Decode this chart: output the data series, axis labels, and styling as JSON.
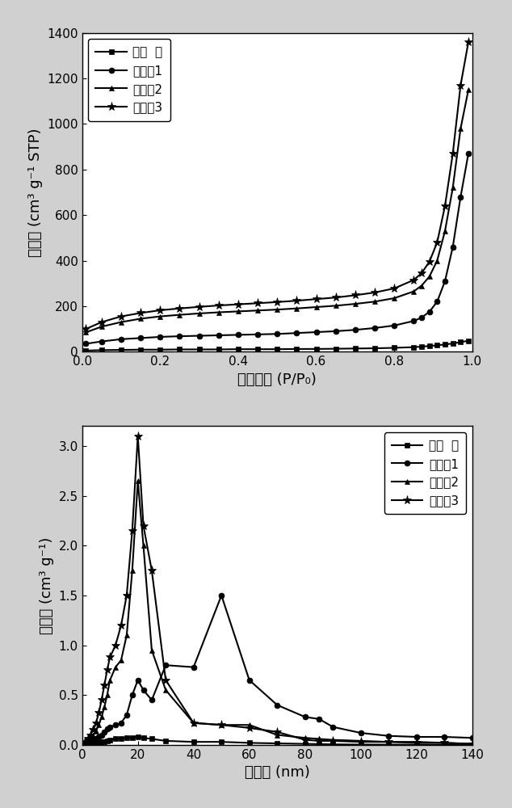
{
  "plot1": {
    "xlabel": "相对压力 (P/P₀)",
    "ylabel": "孔体积 (cm³ g⁻¹ STP)",
    "xlim": [
      0.0,
      1.0
    ],
    "ylim": [
      0,
      1400
    ],
    "xticks": [
      0.0,
      0.2,
      0.4,
      0.6,
      0.8,
      1.0
    ],
    "yticks": [
      0,
      200,
      400,
      600,
      800,
      1000,
      1200,
      1400
    ],
    "legend_loc": "upper left",
    "series": [
      {
        "label": "对比  例",
        "marker": "s",
        "x": [
          0.01,
          0.05,
          0.1,
          0.15,
          0.2,
          0.25,
          0.3,
          0.35,
          0.4,
          0.45,
          0.5,
          0.55,
          0.6,
          0.65,
          0.7,
          0.75,
          0.8,
          0.85,
          0.87,
          0.89,
          0.91,
          0.93,
          0.95,
          0.97,
          0.99
        ],
        "y": [
          5,
          7,
          8,
          9,
          9,
          10,
          10,
          10,
          11,
          11,
          11,
          12,
          12,
          13,
          14,
          15,
          17,
          20,
          22,
          25,
          28,
          32,
          36,
          42,
          48
        ]
      },
      {
        "label": "实施例1",
        "marker": "o",
        "x": [
          0.01,
          0.05,
          0.1,
          0.15,
          0.2,
          0.25,
          0.3,
          0.35,
          0.4,
          0.45,
          0.5,
          0.55,
          0.6,
          0.65,
          0.7,
          0.75,
          0.8,
          0.85,
          0.87,
          0.89,
          0.91,
          0.93,
          0.95,
          0.97,
          0.99
        ],
        "y": [
          35,
          45,
          55,
          60,
          65,
          68,
          70,
          72,
          74,
          76,
          78,
          82,
          86,
          90,
          96,
          104,
          115,
          135,
          150,
          175,
          220,
          310,
          460,
          680,
          870
        ]
      },
      {
        "label": "实施例2",
        "marker": "^",
        "x": [
          0.01,
          0.05,
          0.1,
          0.15,
          0.2,
          0.25,
          0.3,
          0.35,
          0.4,
          0.45,
          0.5,
          0.55,
          0.6,
          0.65,
          0.7,
          0.75,
          0.8,
          0.85,
          0.87,
          0.89,
          0.91,
          0.93,
          0.95,
          0.97,
          0.99
        ],
        "y": [
          85,
          110,
          130,
          145,
          155,
          162,
          168,
          173,
          177,
          181,
          185,
          190,
          196,
          202,
          210,
          220,
          235,
          265,
          290,
          330,
          400,
          530,
          720,
          980,
          1150
        ]
      },
      {
        "label": "实施例3",
        "marker": "*",
        "x": [
          0.01,
          0.05,
          0.1,
          0.15,
          0.2,
          0.25,
          0.3,
          0.35,
          0.4,
          0.45,
          0.5,
          0.55,
          0.6,
          0.65,
          0.7,
          0.75,
          0.8,
          0.85,
          0.87,
          0.89,
          0.91,
          0.93,
          0.95,
          0.97,
          0.99
        ],
        "y": [
          100,
          130,
          155,
          170,
          182,
          190,
          197,
          203,
          208,
          213,
          218,
          224,
          231,
          238,
          248,
          260,
          278,
          315,
          345,
          395,
          480,
          640,
          870,
          1170,
          1360
        ]
      }
    ]
  },
  "plot2": {
    "xlabel": "孔尺寸 (nm)",
    "ylabel": "孔体积 (cm³ g⁻¹)",
    "xlim": [
      0,
      140
    ],
    "ylim": [
      0,
      3.2
    ],
    "xticks": [
      0,
      20,
      40,
      60,
      80,
      100,
      120,
      140
    ],
    "yticks": [
      0.0,
      0.5,
      1.0,
      1.5,
      2.0,
      2.5,
      3.0
    ],
    "legend_loc": "upper right",
    "series": [
      {
        "label": "对比  例",
        "marker": "s",
        "x": [
          1,
          2,
          3,
          4,
          5,
          6,
          7,
          8,
          9,
          10,
          12,
          14,
          16,
          18,
          20,
          22,
          25,
          30,
          40,
          50,
          60,
          70,
          80,
          85,
          90,
          100,
          110,
          120,
          130,
          140
        ],
        "y": [
          0.005,
          0.008,
          0.01,
          0.015,
          0.02,
          0.025,
          0.03,
          0.035,
          0.04,
          0.05,
          0.06,
          0.065,
          0.07,
          0.075,
          0.08,
          0.07,
          0.06,
          0.04,
          0.03,
          0.03,
          0.02,
          0.015,
          0.01,
          0.008,
          0.005,
          0.003,
          0.002,
          0.002,
          0.001,
          0.0
        ]
      },
      {
        "label": "实施例1",
        "marker": "o",
        "x": [
          1,
          2,
          3,
          4,
          5,
          6,
          7,
          8,
          9,
          10,
          12,
          14,
          16,
          18,
          20,
          22,
          25,
          30,
          40,
          50,
          60,
          70,
          80,
          85,
          90,
          100,
          110,
          120,
          130,
          140
        ],
        "y": [
          0.01,
          0.02,
          0.03,
          0.04,
          0.06,
          0.08,
          0.1,
          0.13,
          0.16,
          0.18,
          0.2,
          0.22,
          0.3,
          0.5,
          0.65,
          0.55,
          0.45,
          0.8,
          0.78,
          1.5,
          0.65,
          0.4,
          0.28,
          0.26,
          0.18,
          0.12,
          0.09,
          0.08,
          0.08,
          0.07
        ]
      },
      {
        "label": "实施例2",
        "marker": "^",
        "x": [
          1,
          2,
          3,
          4,
          5,
          6,
          7,
          8,
          9,
          10,
          12,
          14,
          16,
          18,
          20,
          22,
          25,
          30,
          40,
          50,
          60,
          70,
          80,
          85,
          90,
          100,
          110,
          120,
          130,
          140
        ],
        "y": [
          0.02,
          0.04,
          0.07,
          0.1,
          0.14,
          0.2,
          0.28,
          0.38,
          0.5,
          0.65,
          0.78,
          0.85,
          1.1,
          1.75,
          2.65,
          2.0,
          0.95,
          0.55,
          0.22,
          0.2,
          0.2,
          0.1,
          0.07,
          0.06,
          0.05,
          0.04,
          0.03,
          0.03,
          0.02,
          0.01
        ]
      },
      {
        "label": "实施例3",
        "marker": "*",
        "x": [
          1,
          2,
          3,
          4,
          5,
          6,
          7,
          8,
          9,
          10,
          12,
          14,
          16,
          18,
          20,
          22,
          25,
          30,
          40,
          50,
          60,
          70,
          80,
          85,
          90,
          100,
          110,
          120,
          130,
          140
        ],
        "y": [
          0.03,
          0.06,
          0.1,
          0.15,
          0.22,
          0.32,
          0.45,
          0.6,
          0.75,
          0.88,
          1.0,
          1.2,
          1.5,
          2.15,
          3.1,
          2.2,
          1.75,
          0.65,
          0.22,
          0.2,
          0.17,
          0.13,
          0.05,
          0.04,
          0.04,
          0.03,
          0.03,
          0.02,
          0.02,
          0.01
        ]
      }
    ]
  },
  "line_color": "#000000",
  "plot_bg_color": "#ffffff",
  "fig_bg_color": "#d0d0d0",
  "font_size_label": 13,
  "font_size_tick": 11,
  "font_size_legend": 11,
  "marker_size": 5,
  "star_marker_size": 8,
  "linewidth": 1.5
}
